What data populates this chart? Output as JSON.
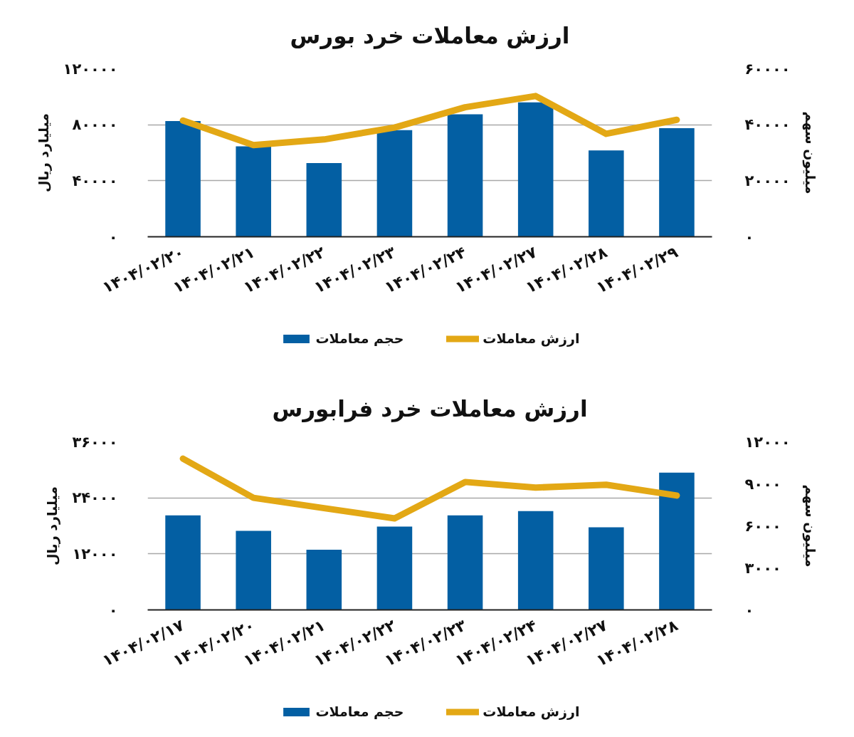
{
  "chart_data": [
    {
      "type": "bar",
      "title": "ارزش معاملات خرد بورس",
      "ylabel": "میلیارد ریال",
      "y2label": "میلیون سهم",
      "categories": [
        "۱۴۰۴/۰۲/۲۰",
        "۱۴۰۴/۰۲/۲۱",
        "۱۴۰۴/۰۲/۲۲",
        "۱۴۰۴/۰۲/۲۳",
        "۱۴۰۴/۰۲/۲۴",
        "۱۴۰۴/۰۲/۲۷",
        "۱۴۰۴/۰۲/۲۸",
        "۱۴۰۴/۰۲/۲۹"
      ],
      "series": [
        {
          "name": "حجم معاملات",
          "axis": "y2",
          "color": "#035fa3",
          "values": [
            41300,
            32300,
            26300,
            38100,
            43700,
            48000,
            30800,
            38800
          ]
        },
        {
          "name": "ارزش معاملات",
          "type": "line",
          "color": "#e3a815",
          "values": [
            83000,
            65500,
            69500,
            78000,
            92500,
            100500,
            73500,
            83500
          ]
        }
      ],
      "ylim": [
        0,
        120000
      ],
      "yticks": [
        {
          "value": 0,
          "label": "۰"
        },
        {
          "value": 40000,
          "label": "۴۰۰۰۰"
        },
        {
          "value": 80000,
          "label": "۸۰۰۰۰"
        },
        {
          "value": 120000,
          "label": "۱۲۰۰۰۰"
        }
      ],
      "y2lim": [
        0,
        60000
      ],
      "y2ticks": [
        {
          "value": 0,
          "label": "۰"
        },
        {
          "value": 20000,
          "label": "۲۰۰۰۰"
        },
        {
          "value": 40000,
          "label": "۴۰۰۰۰"
        },
        {
          "value": 60000,
          "label": "۶۰۰۰۰"
        }
      ],
      "grid": "y",
      "legend": "bottom"
    },
    {
      "type": "bar",
      "title": "ارزش معاملات خرد فرابورس",
      "ylabel": "میلیارد ریال",
      "y2label": "میلیون سهم",
      "categories": [
        "۱۴۰۴/۰۲/۱۷",
        "۱۴۰۴/۰۲/۲۰",
        "۱۴۰۴/۰۲/۲۱",
        "۱۴۰۴/۰۲/۲۲",
        "۱۴۰۴/۰۲/۲۳",
        "۱۴۰۴/۰۲/۲۴",
        "۱۴۰۴/۰۲/۲۷",
        "۱۴۰۴/۰۲/۲۸"
      ],
      "series": [
        {
          "name": "حجم معاملات",
          "axis": "y2",
          "color": "#035fa3",
          "values": [
            6750,
            5650,
            4300,
            5950,
            6750,
            7050,
            5900,
            9800
          ]
        },
        {
          "name": "ارزش معاملات",
          "type": "line",
          "color": "#e3a815",
          "values": [
            32400,
            24000,
            21800,
            19600,
            27400,
            26200,
            26800,
            24500
          ]
        }
      ],
      "ylim": [
        0,
        36000
      ],
      "yticks": [
        {
          "value": 0,
          "label": "۰"
        },
        {
          "value": 12000,
          "label": "۱۲۰۰۰"
        },
        {
          "value": 24000,
          "label": "۲۴۰۰۰"
        },
        {
          "value": 36000,
          "label": "۳۶۰۰۰"
        }
      ],
      "y2lim": [
        0,
        12000
      ],
      "y2ticks": [
        {
          "value": 0,
          "label": "۰"
        },
        {
          "value": 3000,
          "label": "۳۰۰۰"
        },
        {
          "value": 6000,
          "label": "۶۰۰۰"
        },
        {
          "value": 9000,
          "label": "۹۰۰۰"
        },
        {
          "value": 12000,
          "label": "۱۲۰۰۰"
        }
      ],
      "grid": "y",
      "legend": "bottom"
    }
  ]
}
